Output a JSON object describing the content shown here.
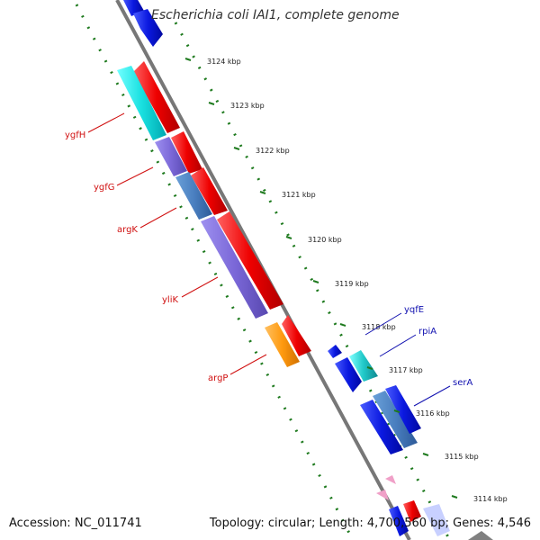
{
  "title": "Escherichia coli IAI1, complete genome",
  "footer": {
    "accession": "Accession: NC_011741",
    "summary": "Topology: circular; Length: 4,700,560 bp; Genes: 4,546"
  },
  "colors": {
    "backbone": "#777777",
    "dots": "#1e7a1e",
    "forward_gene": "#e8000b",
    "reverse_gene": "#0b19e0",
    "reverse_label": "#1010b0",
    "forward_label": "#d01010",
    "cyan": "#19e0e0",
    "purple": "#7b68d8",
    "steel": "#4a7fc0",
    "orange": "#ff9a10",
    "teal": "#20c8c8",
    "pink": "#f0a0c8"
  },
  "ticks": [
    "3124 kbp",
    "3123 kbp",
    "3122 kbp",
    "3121 kbp",
    "3120 kbp",
    "3119 kbp",
    "3118 kbp",
    "3117 kbp",
    "3116 kbp",
    "3115 kbp",
    "3114 kbp"
  ],
  "genes_left": [
    "ygfH",
    "ygfG",
    "argK",
    "yliK",
    "argP"
  ],
  "genes_right": [
    "yqfE",
    "rpiA",
    "serA"
  ]
}
